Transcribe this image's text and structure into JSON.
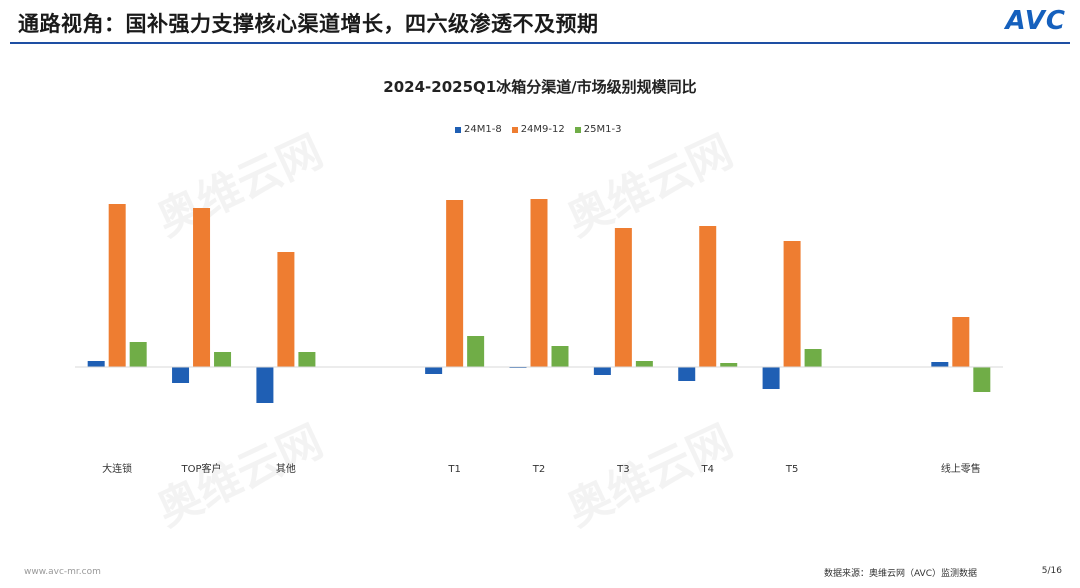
{
  "header": {
    "title": "通路视角：国补强力支撑核心渠道增长，四六级渗透不及预期",
    "logo_text": "AVC"
  },
  "watermark": {
    "text": "奥维云网"
  },
  "chart_data": {
    "type": "bar",
    "title": "2024-2025Q1冰箱分渠道/市场级别规模同比",
    "categories": [
      "大连锁",
      "TOP客户",
      "其他",
      "",
      "T1",
      "T2",
      "T3",
      "T4",
      "T5",
      "",
      "线上零售"
    ],
    "series": [
      {
        "name": "24M1-8",
        "color": "#1f5fb4",
        "values": [
          0.6,
          -1.6,
          -3.6,
          null,
          -0.7,
          -0.1,
          -0.8,
          -1.4,
          -2.2,
          null,
          0.5
        ]
      },
      {
        "name": "24M9-12",
        "color": "#ee7d31",
        "values": [
          16.3,
          15.9,
          11.5,
          null,
          16.7,
          16.8,
          13.9,
          14.1,
          12.6,
          null,
          5.0
        ]
      },
      {
        "name": "25M1-3",
        "color": "#70ad47",
        "values": [
          2.5,
          1.5,
          1.5,
          null,
          3.1,
          2.1,
          0.6,
          0.4,
          1.8,
          null,
          -2.5
        ]
      }
    ],
    "legend_position": "top",
    "grid": false
  },
  "footer": {
    "website": "www.avc-mr.com",
    "source": "数据来源：奥维云网（AVC）监测数据",
    "page": "5/16"
  }
}
